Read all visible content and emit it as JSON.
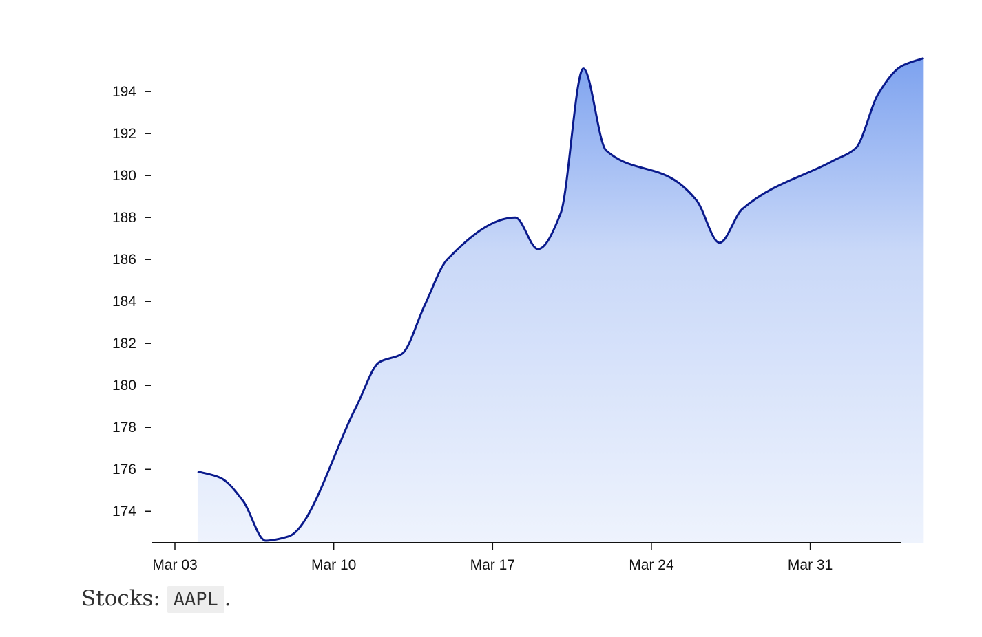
{
  "chart_data": {
    "type": "area",
    "title": "",
    "xlabel": "",
    "ylabel": "",
    "x": [
      "2024-03-04",
      "2024-03-05",
      "2024-03-06",
      "2024-03-07",
      "2024-03-08",
      "2024-03-11",
      "2024-03-12",
      "2024-03-13",
      "2024-03-14",
      "2024-03-15",
      "2024-03-18",
      "2024-03-19",
      "2024-03-20",
      "2024-03-21",
      "2024-03-22",
      "2024-03-25",
      "2024-03-26",
      "2024-03-27",
      "2024-03-28",
      "2024-04-01",
      "2024-04-02",
      "2024-04-03",
      "2024-04-04",
      "2024-04-05"
    ],
    "y": [
      175.9,
      175.6,
      174.5,
      172.6,
      172.8,
      179.0,
      181.1,
      181.5,
      183.8,
      186.0,
      188.0,
      186.5,
      188.2,
      195.1,
      191.2,
      189.8,
      188.8,
      186.8,
      188.4,
      190.7,
      191.3,
      193.9,
      195.2,
      195.6
    ],
    "ylim": [
      172.5,
      196.4
    ],
    "xlim": [
      "2024-03-03",
      "2024-04-05"
    ],
    "y_ticks": [
      174,
      176,
      178,
      180,
      182,
      184,
      186,
      188,
      190,
      192,
      194
    ],
    "x_ticks": [
      "2024-03-03",
      "2024-03-10",
      "2024-03-17",
      "2024-03-24",
      "2024-03-31"
    ],
    "x_tick_labels": [
      "Mar 03",
      "Mar 10",
      "Mar 17",
      "Mar 24",
      "Mar 31"
    ],
    "grid": false,
    "line_color": "#0a1a8c",
    "fill_gradient": [
      "#eef3fd",
      "#7da2ef"
    ]
  },
  "caption": {
    "prefix": "Stocks:",
    "ticker": "AAPL",
    "suffix": "."
  }
}
